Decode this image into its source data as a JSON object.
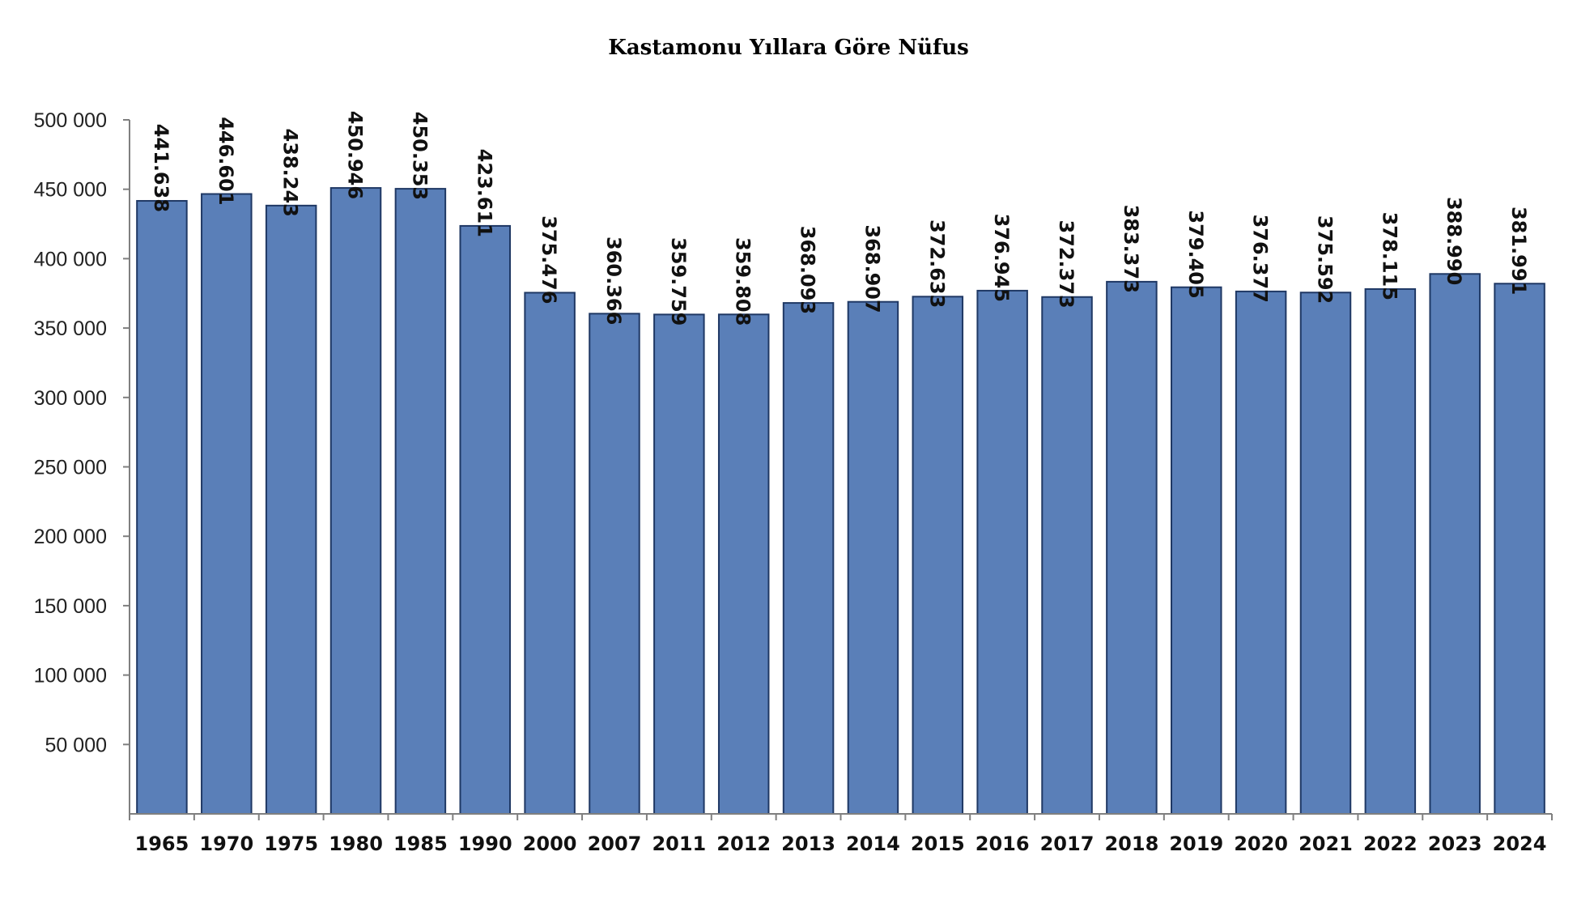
{
  "chart_data": {
    "type": "bar",
    "title": "Kastamonu Yıllara Göre Nüfus",
    "xlabel": "",
    "ylabel": "",
    "ylim": [
      0,
      500000
    ],
    "yticks": [
      50000,
      100000,
      150000,
      200000,
      250000,
      300000,
      350000,
      400000,
      450000,
      500000
    ],
    "ytick_labels": [
      "50 000",
      "100 000",
      "150 000",
      "200 000",
      "250 000",
      "300 000",
      "350 000",
      "400 000",
      "450 000",
      "500 000"
    ],
    "categories": [
      "1965",
      "1970",
      "1975",
      "1980",
      "1985",
      "1990",
      "2000",
      "2007",
      "2011",
      "2012",
      "2013",
      "2014",
      "2015",
      "2016",
      "2017",
      "2018",
      "2019",
      "2020",
      "2021",
      "2022",
      "2023",
      "2024"
    ],
    "values": [
      441638,
      446601,
      438243,
      450946,
      450353,
      423611,
      375476,
      360366,
      359759,
      359808,
      368093,
      368907,
      372633,
      376945,
      372373,
      383373,
      379405,
      376377,
      375592,
      378115,
      388990,
      381991
    ],
    "data_labels": [
      "441.638",
      "446.601",
      "438.243",
      "450.946",
      "450.353",
      "423.611",
      "375.476",
      "360.366",
      "359.759",
      "359.808",
      "368.093",
      "368.907",
      "372.633",
      "376.945",
      "372.373",
      "383.373",
      "379.405",
      "376.377",
      "375.592",
      "378.115",
      "388.990",
      "381.991"
    ],
    "bar_color": "#5a7fb8",
    "bar_edge_color": "#1f3864",
    "grid": false,
    "legend": "none"
  }
}
